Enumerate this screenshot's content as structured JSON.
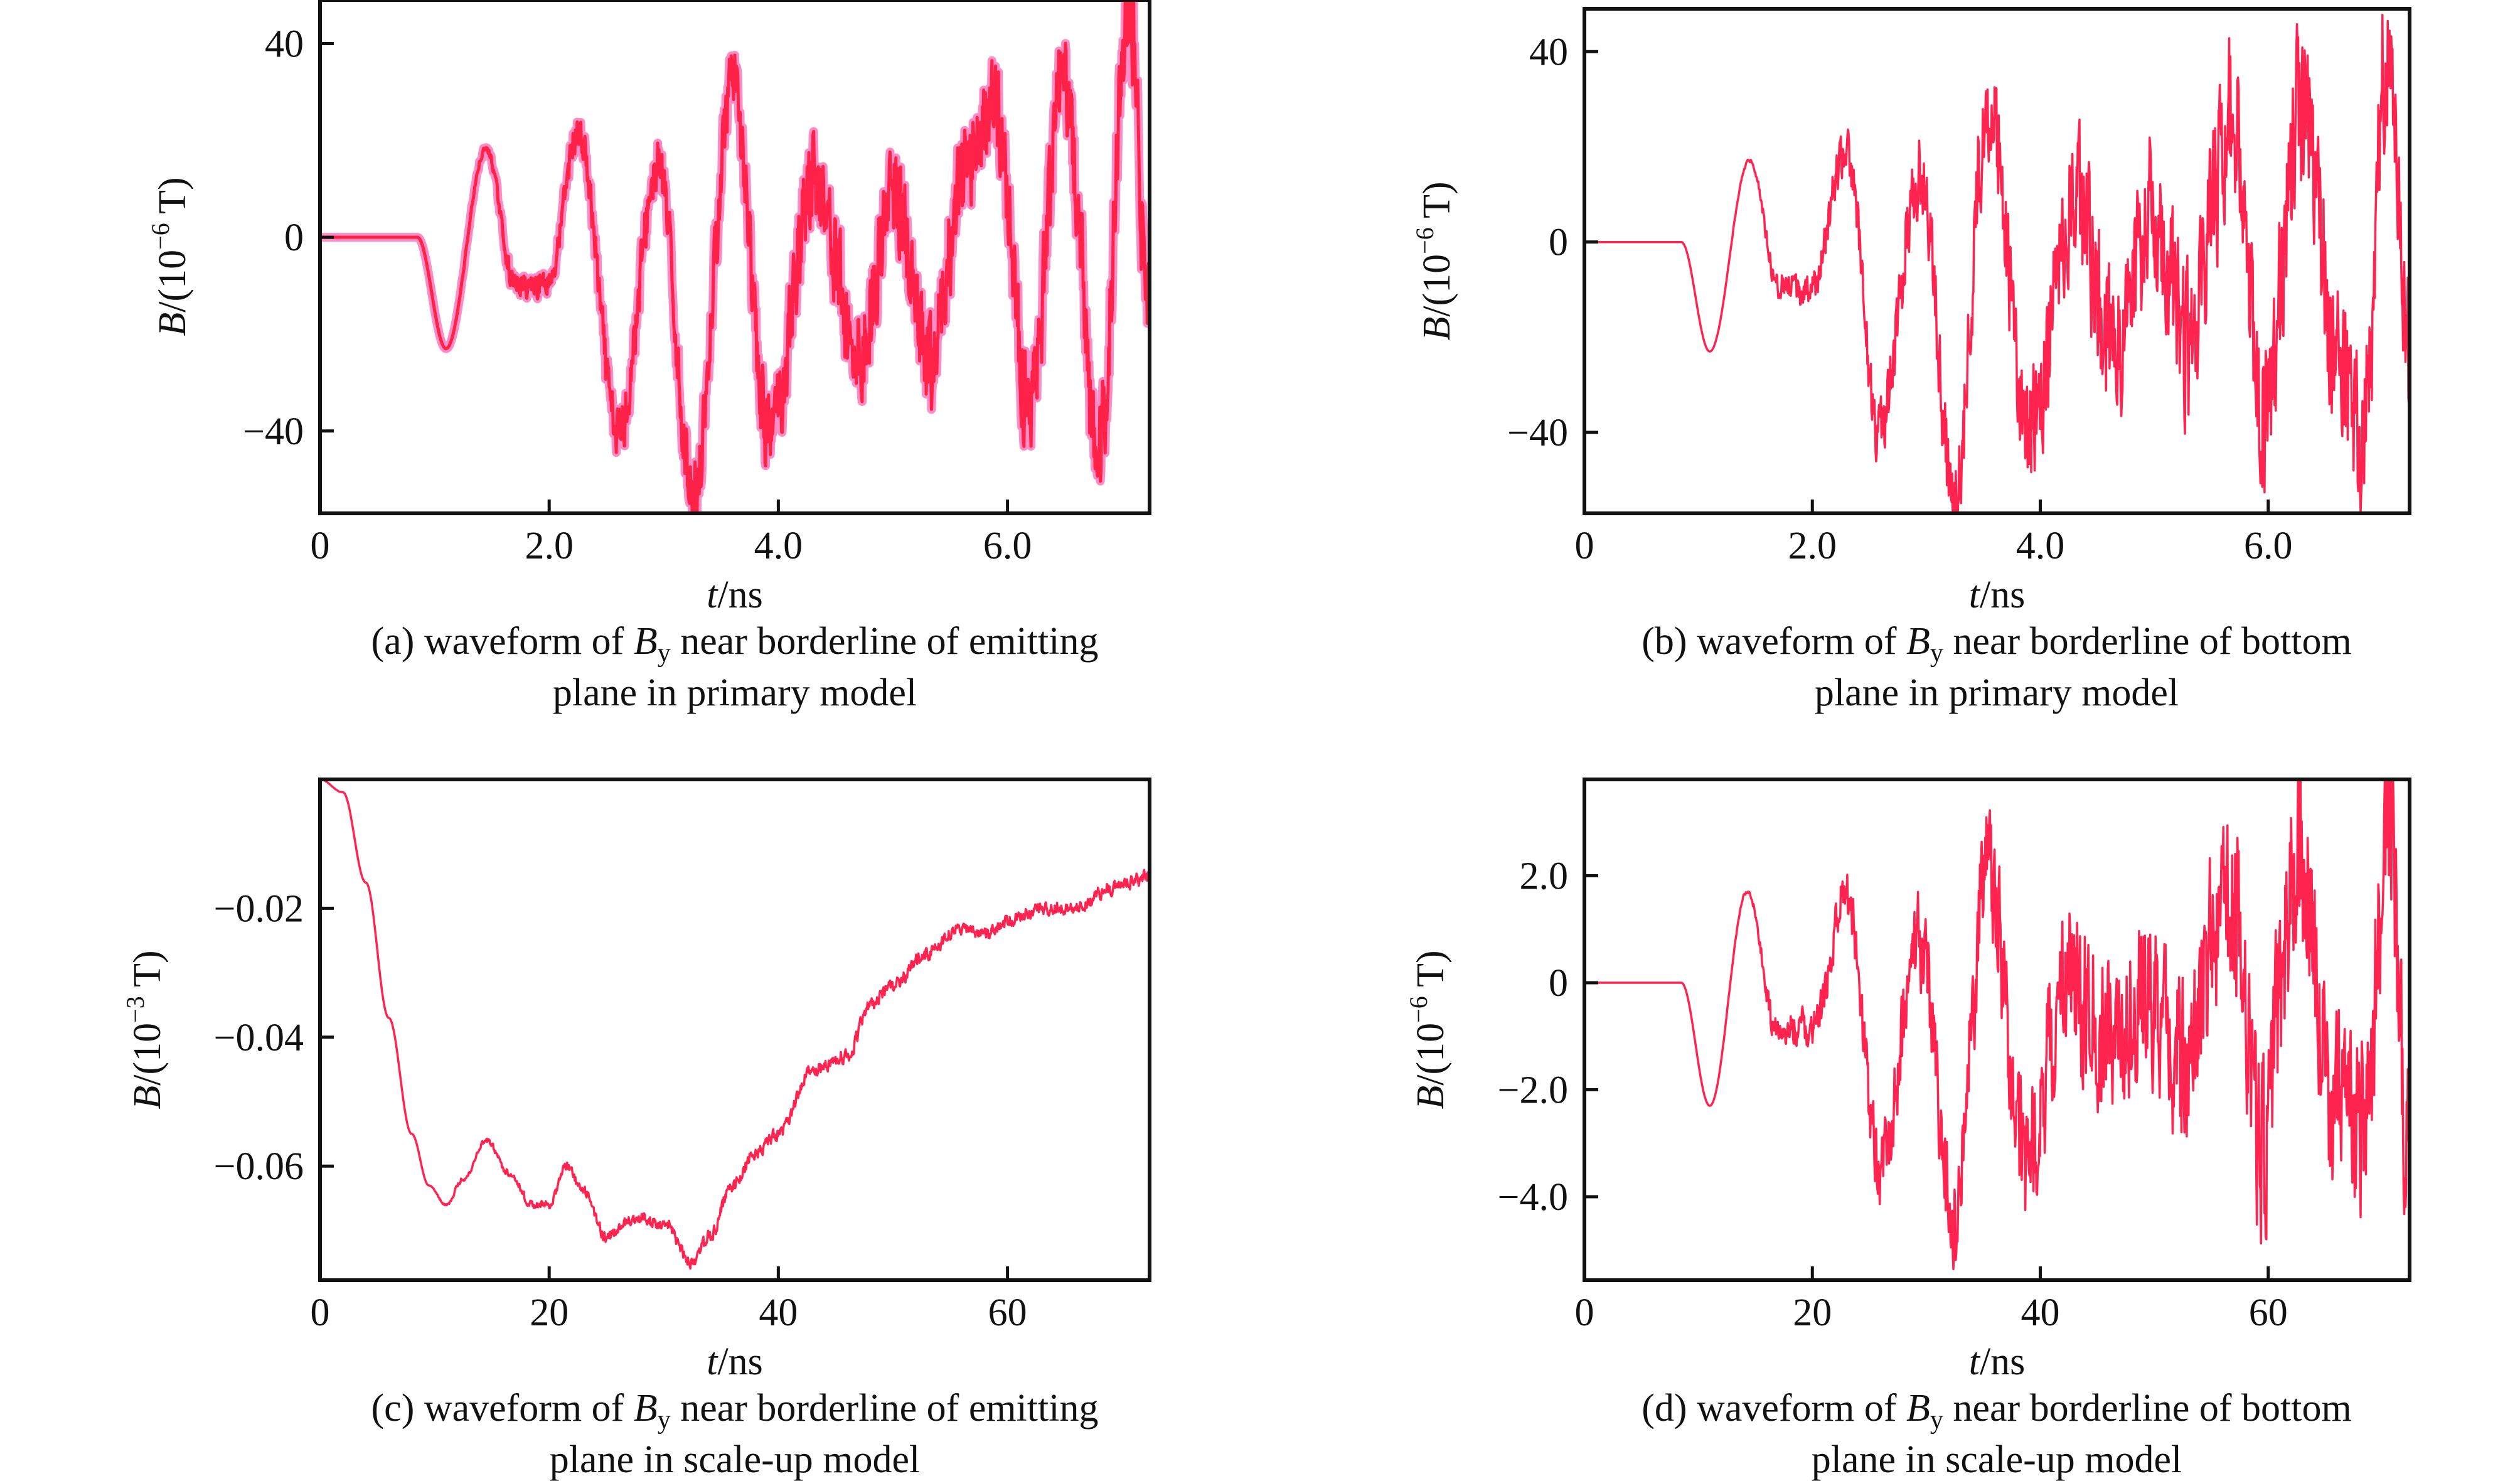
{
  "colors": {
    "line": "#ff2450",
    "line_core_a": "#ff2248",
    "line_envelope_a": "#ff8cc4",
    "axis": "#111111"
  },
  "chart_data": [
    {
      "id": "a",
      "type": "line",
      "caption_line1_pre": "(a) waveform of ",
      "caption_var": "B",
      "caption_sub": "y",
      "caption_line1_post": " near borderline of emitting",
      "caption_line2": "plane in primary model",
      "xlabel_var": "t",
      "xlabel_unit": "/ns",
      "ylabel_var": "B",
      "ylabel_unit_pre": "/(10",
      "ylabel_exp": "−6",
      "ylabel_unit_post": " T)",
      "xlim": [
        0,
        7.24
      ],
      "ylim": [
        -57,
        49
      ],
      "xticks": [
        0,
        2.0,
        4.0,
        6.0
      ],
      "xtick_labels": [
        "0",
        "2.0",
        "4.0",
        "6.0"
      ],
      "yticks": [
        40,
        0,
        -40
      ],
      "ytick_labels": [
        "40",
        "0",
        "−40"
      ],
      "style": "envelope",
      "x": [
        0,
        0.85,
        1.1,
        1.45,
        1.7,
        2.0,
        2.25,
        2.6,
        2.95,
        3.25,
        3.6,
        3.9,
        4.3,
        4.7,
        5.0,
        5.3,
        5.6,
        5.9,
        6.2,
        6.5,
        6.8,
        7.05,
        7.24
      ],
      "y": [
        0,
        0,
        -23,
        18,
        -10,
        -8,
        20,
        -38,
        12,
        -50,
        28,
        -38,
        8,
        -20,
        5,
        -25,
        10,
        25,
        -30,
        25,
        -40,
        45,
        -20
      ],
      "noise_amplitude": [
        0,
        0,
        0,
        1,
        3,
        4,
        5,
        8,
        8,
        9,
        10,
        12,
        14,
        14,
        14,
        14,
        14,
        14,
        16,
        16,
        16,
        16,
        16
      ],
      "grid": false
    },
    {
      "id": "b",
      "type": "line",
      "caption_line1_pre": "(b) waveform of ",
      "caption_var": "B",
      "caption_sub": "y",
      "caption_line1_post": " near borderline of bottom",
      "caption_line2": "plane in primary model",
      "xlabel_var": "t",
      "xlabel_unit": "/ns",
      "ylabel_var": "B",
      "ylabel_unit_pre": "/(10",
      "ylabel_exp": "−6",
      "ylabel_unit_post": " T)",
      "xlim": [
        0,
        7.24
      ],
      "ylim": [
        -57,
        49
      ],
      "xticks": [
        0,
        2.0,
        4.0,
        6.0
      ],
      "xtick_labels": [
        "0",
        "2.0",
        "4.0",
        "6.0"
      ],
      "yticks": [
        40,
        0,
        -40
      ],
      "ytick_labels": [
        "40",
        "0",
        "−40"
      ],
      "style": "single",
      "x": [
        0,
        0.85,
        1.1,
        1.45,
        1.7,
        2.0,
        2.3,
        2.6,
        2.95,
        3.25,
        3.55,
        3.9,
        4.3,
        4.7,
        5.0,
        5.3,
        5.7,
        5.95,
        6.3,
        6.6,
        6.85,
        7.05,
        7.24
      ],
      "y": [
        0,
        0,
        -23,
        17,
        -8,
        -10,
        18,
        -38,
        12,
        -48,
        25,
        -35,
        5,
        -15,
        0,
        -15,
        20,
        -30,
        22,
        -20,
        -35,
        35,
        -25
      ],
      "noise_amplitude": [
        0,
        0,
        0,
        0.5,
        4,
        5,
        7,
        10,
        12,
        14,
        16,
        18,
        22,
        22,
        22,
        22,
        24,
        24,
        24,
        24,
        24,
        24,
        24
      ],
      "grid": false
    },
    {
      "id": "c",
      "type": "line",
      "caption_line1_pre": "(c) waveform of ",
      "caption_var": "B",
      "caption_sub": "y",
      "caption_line1_post": " near borderline of emitting",
      "caption_line2": "plane in scale-up model",
      "xlabel_var": "t",
      "xlabel_unit": "/ns",
      "ylabel_var": "B",
      "ylabel_unit_pre": "/(10",
      "ylabel_exp": "−3",
      "ylabel_unit_post": " T)",
      "xlim": [
        0,
        72.4
      ],
      "ylim": [
        -0.0777,
        0.0
      ],
      "xticks": [
        0,
        20,
        40,
        60
      ],
      "xtick_labels": [
        "0",
        "20",
        "40",
        "60"
      ],
      "yticks": [
        -0.02,
        -0.04,
        -0.06
      ],
      "ytick_labels": [
        "−0.02",
        "−0.04",
        "−0.06"
      ],
      "style": "single",
      "x": [
        0,
        2,
        4,
        6,
        8,
        9.5,
        11,
        12.5,
        14.5,
        16.5,
        18.5,
        20,
        21.5,
        23,
        25,
        27.5,
        30,
        32.5,
        34,
        36,
        38,
        40,
        43,
        46,
        48,
        50,
        53,
        56,
        58,
        60,
        63,
        66,
        69,
        72.4
      ],
      "y": [
        0,
        -0.002,
        -0.016,
        -0.037,
        -0.055,
        -0.063,
        -0.066,
        -0.062,
        -0.056,
        -0.061,
        -0.066,
        -0.066,
        -0.06,
        -0.064,
        -0.071,
        -0.068,
        -0.069,
        -0.075,
        -0.071,
        -0.063,
        -0.058,
        -0.055,
        -0.045,
        -0.043,
        -0.035,
        -0.032,
        -0.027,
        -0.023,
        -0.024,
        -0.022,
        -0.02,
        -0.02,
        -0.017,
        -0.015
      ],
      "noise_amplitude": [
        0,
        0,
        0,
        0,
        0,
        0,
        0.0003,
        0.0005,
        0.0006,
        0.0008,
        0.0008,
        0.0008,
        0.0009,
        0.001,
        0.0012,
        0.0012,
        0.0012,
        0.0013,
        0.0014,
        0.0014,
        0.0014,
        0.0014,
        0.0014,
        0.0014,
        0.0014,
        0.0014,
        0.0014,
        0.0014,
        0.0014,
        0.0014,
        0.0014,
        0.0014,
        0.0014,
        0.0014
      ],
      "grid": false
    },
    {
      "id": "d",
      "type": "line",
      "caption_line1_pre": "(d) waveform of ",
      "caption_var": "B",
      "caption_sub": "y",
      "caption_line1_post": " near borderline of bottom",
      "caption_line2": "plane in scale-up model",
      "xlabel_var": "t",
      "xlabel_unit": "/ns",
      "ylabel_var": "B",
      "ylabel_unit_pre": "/(10",
      "ylabel_exp": "−6",
      "ylabel_unit_post": " T)",
      "xlim": [
        0,
        72.4
      ],
      "ylim": [
        -5.56,
        3.8
      ],
      "xticks": [
        0,
        20,
        40,
        60
      ],
      "xtick_labels": [
        "0",
        "20",
        "40",
        "60"
      ],
      "yticks": [
        2.0,
        0,
        -2.0,
        -4.0
      ],
      "ytick_labels": [
        "2.0",
        "0",
        "−2.0",
        "−4.0"
      ],
      "style": "single",
      "x": [
        0,
        8.5,
        11,
        14.3,
        17,
        20,
        23,
        26,
        29.5,
        32.5,
        35.5,
        39,
        43,
        47,
        50,
        53,
        57,
        59.5,
        63,
        66,
        68.5,
        70.5,
        72.4
      ],
      "y": [
        0,
        0,
        -2.3,
        1.7,
        -0.9,
        -1.0,
        1.8,
        -3.7,
        1.1,
        -4.7,
        2.4,
        -3.5,
        0.5,
        -1.5,
        0.2,
        -1.5,
        2.0,
        -3.0,
        2.2,
        -2.0,
        -3.5,
        3.5,
        -2.5
      ],
      "noise_amplitude": [
        0,
        0,
        0,
        0.05,
        0.4,
        0.5,
        0.7,
        1.0,
        1.2,
        1.4,
        1.6,
        1.8,
        2.2,
        2.2,
        2.2,
        2.2,
        2.4,
        2.4,
        2.4,
        2.4,
        2.4,
        2.4,
        2.4
      ],
      "grid": false
    }
  ]
}
